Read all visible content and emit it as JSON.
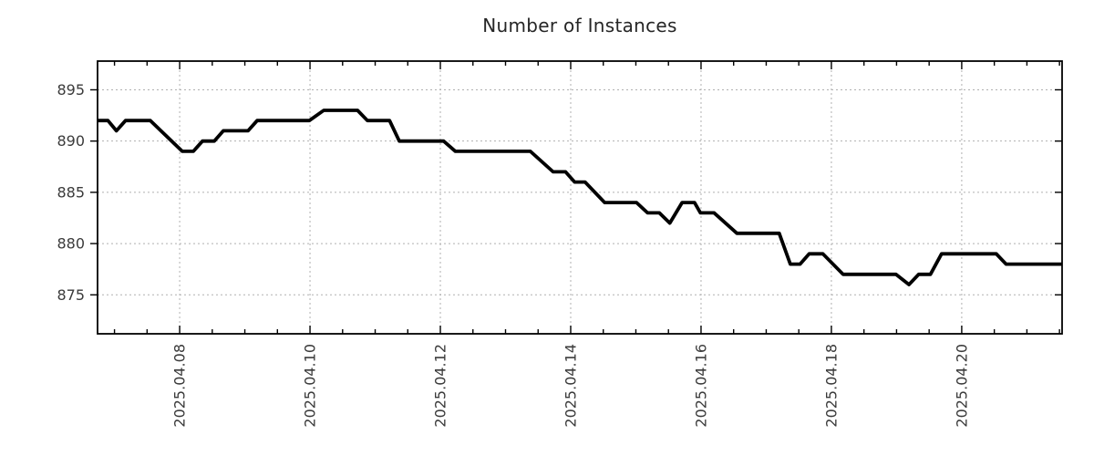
{
  "page": {
    "background": "#ffffff"
  },
  "chart_data": {
    "type": "line",
    "title": "Number of Instances",
    "xlabel": "",
    "ylabel": "",
    "legend": "none",
    "grid": {
      "style": "dashed",
      "color": "#b0b0b0"
    },
    "axis_color": "#000000",
    "tick_label_color": "#3b3b3b",
    "x_axis": {
      "tick_days": [
        8,
        10,
        12,
        14,
        16,
        18,
        20
      ],
      "tick_labels": [
        "2025.04.08",
        "2025.04.10",
        "2025.04.12",
        "2025.04.14",
        "2025.04.16",
        "2025.04.18",
        "2025.04.20"
      ],
      "minor_tick_step_days": 0.5,
      "domain_days": [
        6.74,
        21.54
      ]
    },
    "y_axis": {
      "ticks": [
        875,
        880,
        885,
        890,
        895
      ],
      "domain": [
        871.2,
        897.8
      ]
    },
    "series": [
      {
        "name": "instances",
        "color": "#000000",
        "line_width": 3.8,
        "points": [
          [
            6.74,
            892
          ],
          [
            6.9,
            892
          ],
          [
            7.03,
            891
          ],
          [
            7.17,
            892
          ],
          [
            7.55,
            892
          ],
          [
            8.04,
            889
          ],
          [
            8.21,
            889
          ],
          [
            8.35,
            890
          ],
          [
            8.53,
            890
          ],
          [
            8.67,
            891
          ],
          [
            9.05,
            891
          ],
          [
            9.19,
            892
          ],
          [
            9.99,
            892
          ],
          [
            10.21,
            893
          ],
          [
            10.73,
            893
          ],
          [
            10.88,
            892
          ],
          [
            11.22,
            892
          ],
          [
            11.37,
            890
          ],
          [
            12.05,
            890
          ],
          [
            12.23,
            889
          ],
          [
            13.38,
            889
          ],
          [
            13.73,
            887
          ],
          [
            13.92,
            887
          ],
          [
            14.06,
            886
          ],
          [
            14.22,
            886
          ],
          [
            14.52,
            884
          ],
          [
            15.01,
            884
          ],
          [
            15.18,
            883
          ],
          [
            15.36,
            883
          ],
          [
            15.52,
            882
          ],
          [
            15.71,
            884
          ],
          [
            15.9,
            884
          ],
          [
            15.99,
            883
          ],
          [
            16.2,
            883
          ],
          [
            16.55,
            881
          ],
          [
            17.2,
            881
          ],
          [
            17.37,
            878
          ],
          [
            17.52,
            878
          ],
          [
            17.66,
            879
          ],
          [
            17.87,
            879
          ],
          [
            18.18,
            877
          ],
          [
            18.99,
            877
          ],
          [
            19.19,
            876
          ],
          [
            19.34,
            877
          ],
          [
            19.52,
            877
          ],
          [
            19.69,
            879
          ],
          [
            20.53,
            879
          ],
          [
            20.68,
            878
          ],
          [
            21.54,
            878
          ]
        ]
      }
    ]
  }
}
